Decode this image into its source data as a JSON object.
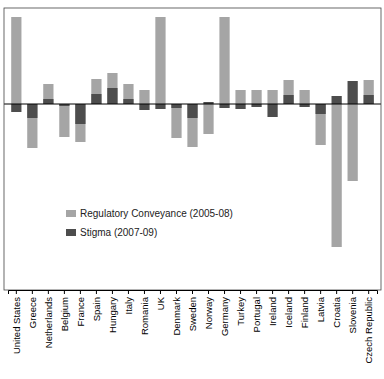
{
  "chart_data": {
    "type": "bar",
    "categories": [
      "United States",
      "Greece",
      "Netherlands",
      "Belgium",
      "France",
      "Spain",
      "Hungary",
      "Italy",
      "Romania",
      "UK",
      "Denmark",
      "Sweden",
      "Norway",
      "Germany",
      "Turkey",
      "Portugal",
      "Ireland",
      "Iceland",
      "Finland",
      "Latvia",
      "Croatia",
      "Slovenia",
      "Czech Republic"
    ],
    "series": [
      {
        "name": "Regulatory Conveyance (2005-08)",
        "color": "#a5a5a5",
        "values": [
          8.7,
          -4.4,
          2.0,
          -3.3,
          -3.8,
          2.5,
          3.1,
          2.0,
          1.4,
          8.7,
          -3.4,
          -4.3,
          -3.0,
          8.7,
          1.4,
          1.4,
          1.4,
          2.4,
          1.4,
          -4.1,
          -14.3,
          -7.7,
          2.4
        ]
      },
      {
        "name": "Stigma (2007-09)",
        "color": "#4d4d4d",
        "values": [
          -0.8,
          -1.4,
          0.5,
          -0.2,
          -2.0,
          1.0,
          1.6,
          0.5,
          -0.6,
          -0.5,
          -0.4,
          -1.4,
          0.2,
          -0.4,
          -0.5,
          -0.3,
          -1.3,
          0.9,
          -0.3,
          -1.0,
          0.8,
          2.3,
          0.9
        ]
      }
    ],
    "ylim": [
      -18.6,
      9.6
    ],
    "yticks": [
      0
    ],
    "tick_labels": "x",
    "stacked": false,
    "legend": "left"
  }
}
